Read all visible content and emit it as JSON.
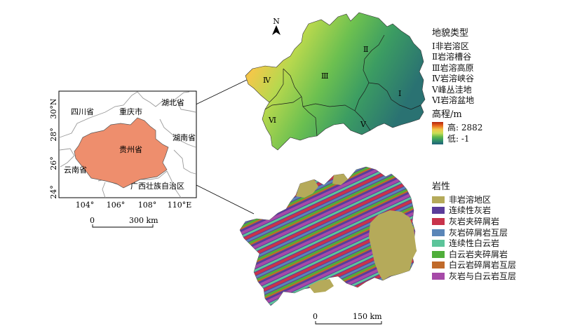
{
  "north_label": "N",
  "inset": {
    "lat_ticks": [
      "30°N",
      "28°",
      "26°",
      "24°"
    ],
    "lon_ticks": [
      "104°",
      "106°",
      "108°",
      "110°E"
    ],
    "provinces": [
      "四川省",
      "重庆市",
      "湖北省",
      "贵州省",
      "湖南省",
      "云南省",
      "广西壮族自治区"
    ],
    "scale_zero": "0",
    "scale_end": "300 km"
  },
  "landform_legend": {
    "title": "地貌类型",
    "items": [
      "Ⅰ非岩溶区",
      "Ⅱ岩溶槽谷",
      "Ⅲ岩溶高原",
      "Ⅳ岩溶峡谷",
      "Ⅴ峰丛洼地",
      "Ⅵ岩溶盆地"
    ]
  },
  "elevation_legend": {
    "title": "高程/m",
    "high": "高: 2882",
    "low": "低: -1"
  },
  "region_labels": [
    "Ⅱ",
    "Ⅲ",
    "Ⅳ",
    "Ⅰ",
    "Ⅵ",
    "Ⅴ"
  ],
  "lithology_legend": {
    "title": "岩性",
    "items": [
      {
        "label": "非岩溶地区",
        "color": "#b5aa5a"
      },
      {
        "label": "连续性灰岩",
        "color": "#5b3c9a"
      },
      {
        "label": "灰岩夹碎屑岩",
        "color": "#c8334b"
      },
      {
        "label": "灰岩碎屑岩互层",
        "color": "#5a86b8"
      },
      {
        "label": "连续性白云岩",
        "color": "#5cc49a"
      },
      {
        "label": "白云岩夹碎屑岩",
        "color": "#4fae3a"
      },
      {
        "label": "白云岩碎屑岩互层",
        "color": "#c06a2a"
      },
      {
        "label": "灰岩与白云岩互层",
        "color": "#a64aa8"
      }
    ]
  },
  "lower_scale": {
    "zero": "0",
    "end": "150 km"
  },
  "colors": {
    "guizhou_fill": "#ee8e6d",
    "neighbor_fill": "#ffffff",
    "frame": "#000000"
  }
}
